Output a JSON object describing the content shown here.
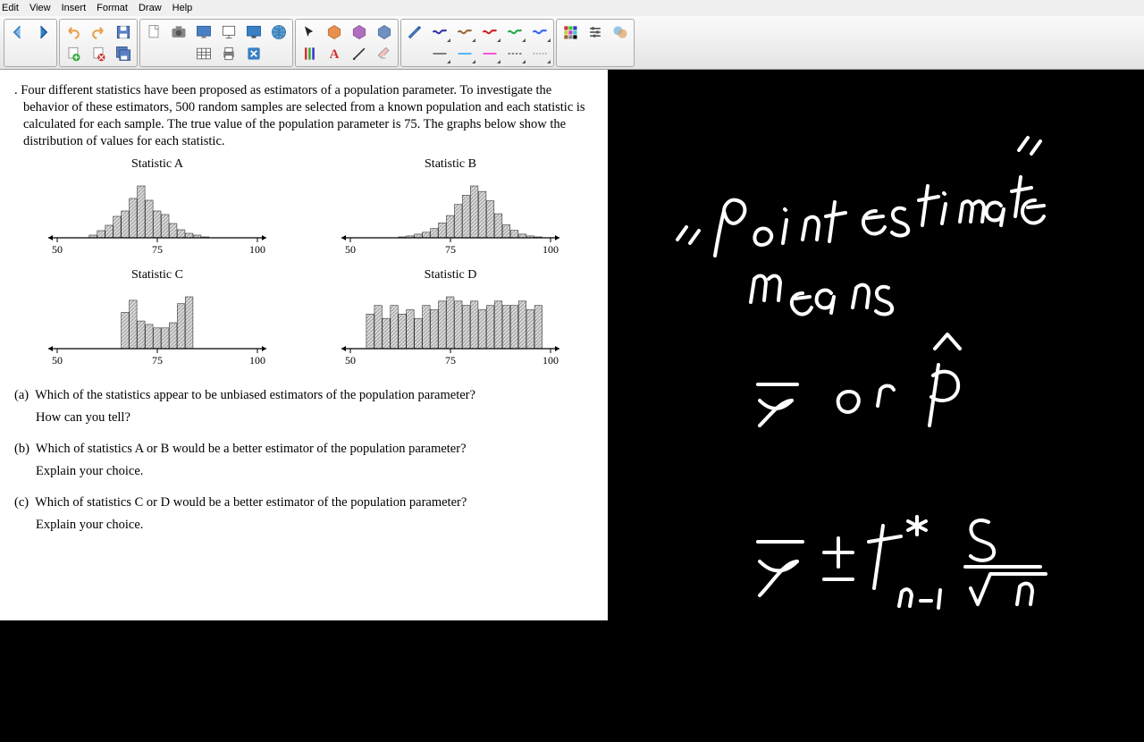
{
  "menu": {
    "items": [
      "Edit",
      "View",
      "Insert",
      "Format",
      "Draw",
      "Help"
    ]
  },
  "document": {
    "intro": ". Four different statistics have been proposed as estimators of a population parameter. To investigate the behavior of these estimators, 500 random samples are selected from a known population and each statistic is calculated for each sample. The true value of the population parameter is 75. The graphs below show the distribution of values for each statistic.",
    "charts": {
      "A": {
        "title": "Statistic A",
        "xmin": 50,
        "xmax": 100,
        "xticks": [
          50,
          75,
          100
        ],
        "bars": [
          0,
          0,
          0,
          0,
          3,
          8,
          14,
          24,
          30,
          44,
          58,
          42,
          30,
          26,
          16,
          9,
          5,
          3,
          1,
          0,
          0,
          0,
          0,
          0,
          0
        ]
      },
      "B": {
        "title": "Statistic B",
        "xmin": 50,
        "xmax": 100,
        "xticks": [
          50,
          75,
          100
        ],
        "bars": [
          0,
          0,
          0,
          0,
          0,
          0,
          1,
          2,
          4,
          6,
          10,
          16,
          24,
          36,
          46,
          56,
          50,
          40,
          26,
          14,
          8,
          4,
          2,
          1,
          0
        ]
      },
      "C": {
        "title": "Statistic C",
        "xmin": 50,
        "xmax": 100,
        "xticks": [
          50,
          75,
          100
        ],
        "bars": [
          0,
          0,
          0,
          0,
          0,
          0,
          0,
          0,
          42,
          56,
          32,
          28,
          24,
          24,
          30,
          52,
          60,
          0,
          0,
          0,
          0,
          0,
          0,
          0,
          0
        ]
      },
      "D": {
        "title": "Statistic D",
        "xmin": 50,
        "xmax": 100,
        "xticks": [
          50,
          75,
          100
        ],
        "bars": [
          0,
          0,
          16,
          20,
          14,
          20,
          16,
          18,
          14,
          20,
          18,
          22,
          24,
          22,
          20,
          22,
          18,
          20,
          22,
          20,
          20,
          22,
          18,
          20,
          0
        ]
      }
    },
    "questions": {
      "a": {
        "label": "(a)",
        "text": "Which of the statistics appear to be unbiased estimators of the population parameter?",
        "sub": "How can you tell?"
      },
      "b": {
        "label": "(b)",
        "text": "Which of statistics A or B would be a better estimator of the population parameter?",
        "sub": "Explain your choice."
      },
      "c": {
        "label": "(c)",
        "text": "Which of statistics C or D would be a better estimator of the population parameter?",
        "sub": "Explain your choice."
      }
    }
  },
  "handwriting": {
    "items": [
      "\"point estimate\"",
      "means",
      "x̄ or p̂",
      "x̄ ± t*ₙ₋₁ s/√n"
    ],
    "stroke_color": "#ffffff",
    "stroke_width": 4
  },
  "toolbar": {
    "pen_colors": [
      "#3333aa",
      "#996633",
      "#cc2222",
      "#22aa44",
      "#3366ff"
    ],
    "line_colors": [
      "#ffffff",
      "#33aaff",
      "#ff33cc",
      "#777777",
      "#ffffff"
    ]
  }
}
